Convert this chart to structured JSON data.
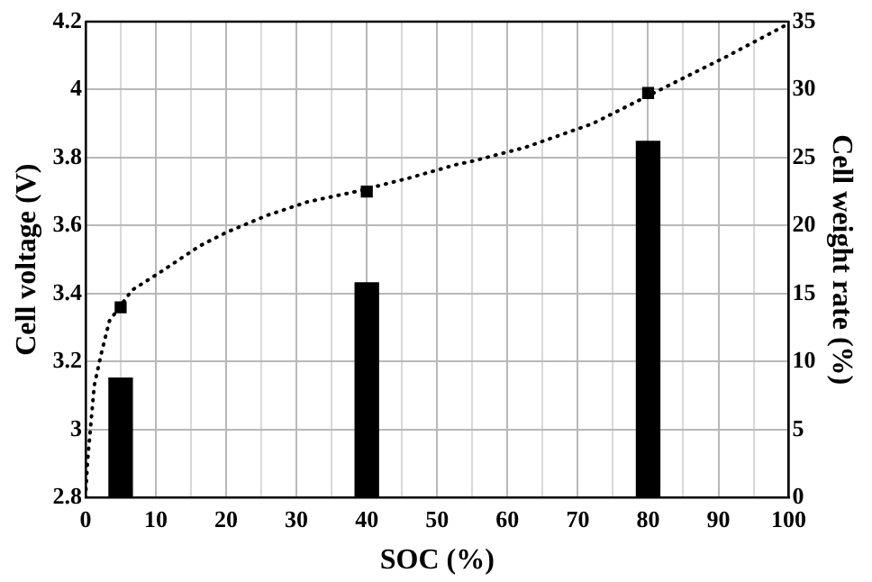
{
  "chart_data": {
    "type": "bar",
    "xlabel": "SOC (%)",
    "ylabel": "Cell voltage (V)",
    "y2label": "Cell weight rate (%)",
    "series": [
      {
        "axis": "y2",
        "color": "#000000",
        "x": [
          5,
          40,
          80
        ],
        "values": [
          8.8,
          15.8,
          26.2
        ]
      },
      {
        "type": "scatter",
        "color": "#000000",
        "marker": "square",
        "x": [
          5,
          40,
          80
        ],
        "values": [
          3.36,
          3.7,
          3.99
        ]
      },
      {
        "type": "line",
        "color": "#000000",
        "marker": "none",
        "line_style": "dotted",
        "x": [
          0,
          0.3,
          1.25,
          2.2,
          3.4,
          6.6,
          10.4,
          16.2,
          20,
          25.8,
          31.6,
          38.4,
          46,
          52.8,
          55.1,
          62.5,
          72.1,
          85.6,
          91.4,
          99.6,
          100
        ],
        "values": [
          2.8,
          2.91,
          3.13,
          3.22,
          3.32,
          3.41,
          3.46,
          3.54,
          3.58,
          3.63,
          3.67,
          3.7,
          3.74,
          3.78,
          3.79,
          3.83,
          3.9,
          4.04,
          4.1,
          4.19,
          4.2
        ]
      }
    ],
    "xlim": [
      0,
      100
    ],
    "xticks": [
      0,
      {
        "value": 5,
        "label": null
      },
      10,
      {
        "value": 15,
        "label": null
      },
      20,
      {
        "value": 25,
        "label": null
      },
      30,
      {
        "value": 35,
        "label": null
      },
      40,
      {
        "value": 45,
        "label": null
      },
      50,
      {
        "value": 55,
        "label": null
      },
      60,
      {
        "value": 65,
        "label": null
      },
      70,
      {
        "value": 75,
        "label": null
      },
      80,
      {
        "value": 85,
        "label": null
      },
      90,
      {
        "value": 95,
        "label": null
      },
      100
    ],
    "ylim": [
      2.8,
      4.2
    ],
    "yticks": [
      2.8,
      3.0,
      3.2,
      3.4,
      3.6,
      3.8,
      4.0,
      4.2
    ],
    "y2lim": [
      0,
      35
    ],
    "y2ticks": [
      0,
      5,
      10,
      15,
      20,
      25,
      30,
      35
    ],
    "grid": true,
    "legend": false
  }
}
